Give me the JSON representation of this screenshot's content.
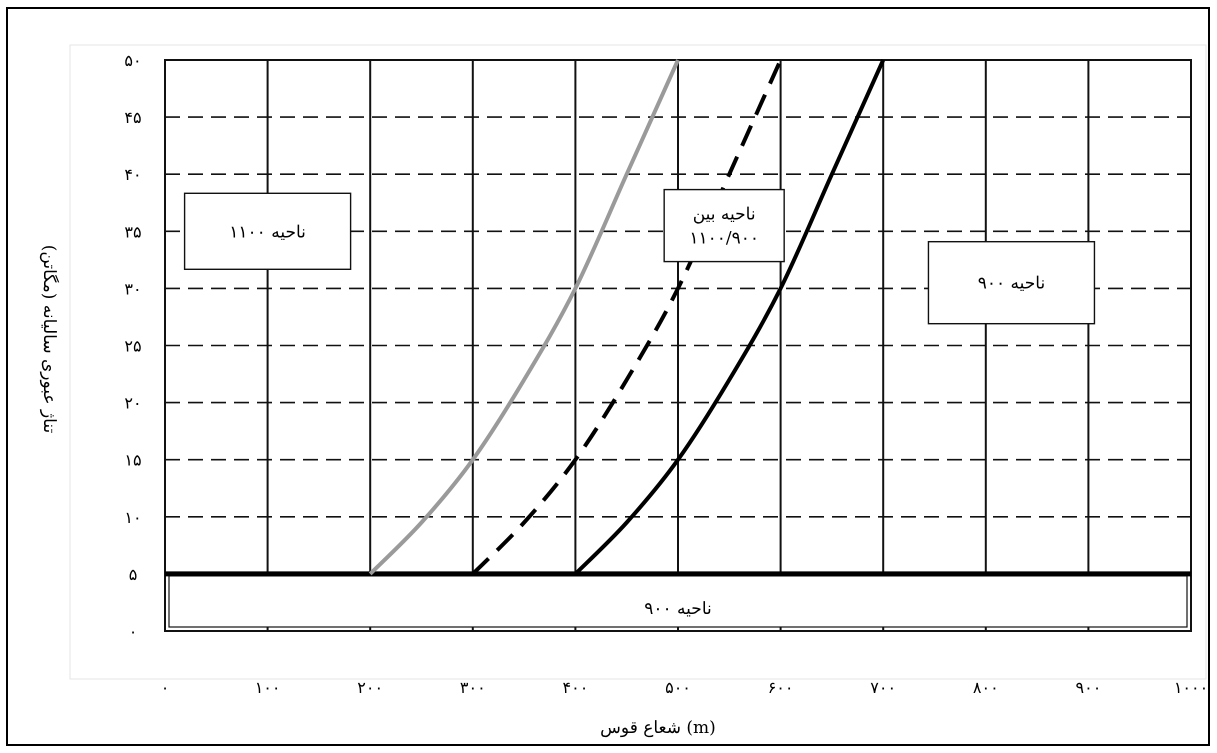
{
  "chart_data": {
    "type": "line",
    "xlabel": "(m) شعاع قوس",
    "ylabel": "تناژ عبوری سالیانه (مگاتن)",
    "xlim": [
      0,
      1000
    ],
    "ylim": [
      0,
      50
    ],
    "x_ticks": [
      0,
      100,
      200,
      300,
      400,
      500,
      600,
      700,
      800,
      900,
      1000
    ],
    "x_tick_labels": [
      "۰",
      "۱۰۰",
      "۲۰۰",
      "۳۰۰",
      "۴۰۰",
      "۵۰۰",
      "۶۰۰",
      "۷۰۰",
      "۸۰۰",
      "۹۰۰",
      "۱۰۰۰"
    ],
    "y_ticks": [
      0,
      5,
      10,
      15,
      20,
      25,
      30,
      35,
      40,
      45,
      50
    ],
    "y_tick_labels": [
      "۰",
      "۵",
      "۱۰",
      "۱۵",
      "۲۰",
      "۲۵",
      "۳۰",
      "۳۵",
      "۴۰",
      "۴۵",
      "۵۰"
    ],
    "grid": {
      "vertical": "solid",
      "horizontal": "dashed"
    },
    "series": [
      {
        "style": "solid-gray",
        "color": "#9a9a9a",
        "x": [
          200,
          250,
          300,
          350,
          400,
          450,
          500
        ],
        "y": [
          5,
          9.5,
          15,
          22,
          30,
          40,
          50
        ]
      },
      {
        "style": "dashed-black",
        "color": "#000000",
        "x": [
          300,
          350,
          400,
          450,
          500,
          550,
          600
        ],
        "y": [
          5,
          9.5,
          15,
          22,
          30,
          40,
          50
        ]
      },
      {
        "style": "solid-black",
        "color": "#000000",
        "x": [
          400,
          450,
          500,
          550,
          600,
          650,
          700
        ],
        "y": [
          5,
          9.5,
          15,
          22,
          30,
          40,
          50
        ]
      }
    ],
    "annotations": [
      {
        "lines": [
          "ناحیه ۱۱۰۰"
        ],
        "x": 100,
        "y": 35
      },
      {
        "lines": [
          "ناحیه بین",
          "۱۱۰۰/۹۰۰"
        ],
        "x": 545,
        "y": 35.5
      },
      {
        "lines": [
          "ناحیه ۹۰۰"
        ],
        "x": 825,
        "y": 30.5
      },
      {
        "lines": [
          "ناحیه ۹۰۰"
        ],
        "x": 500,
        "y": 2
      }
    ],
    "baseline_y": 5
  }
}
